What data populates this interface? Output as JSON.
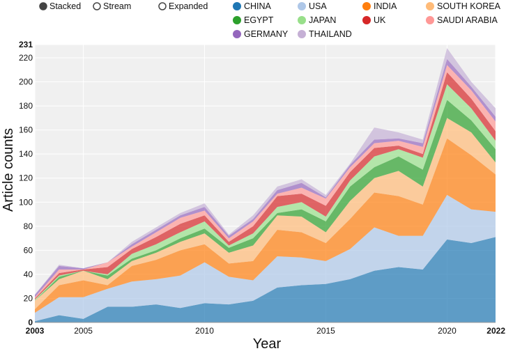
{
  "chart_data": {
    "type": "area",
    "stacked": true,
    "title": "",
    "xlabel": "Year",
    "ylabel": "Article counts",
    "xlim": [
      2003,
      2022
    ],
    "ylim": [
      0,
      231
    ],
    "x": [
      2003,
      2004,
      2005,
      2006,
      2007,
      2008,
      2009,
      2010,
      2011,
      2012,
      2013,
      2014,
      2015,
      2016,
      2017,
      2018,
      2019,
      2020,
      2021,
      2022
    ],
    "x_ticks": [
      "2003",
      "2005",
      "2010",
      "2015",
      "2020",
      "2022"
    ],
    "x_tick_values": [
      2003,
      2005,
      2010,
      2015,
      2020,
      2022
    ],
    "x_tick_bold": [
      true,
      false,
      false,
      false,
      false,
      true
    ],
    "y_ticks": [
      "0",
      "20",
      "40",
      "60",
      "80",
      "100",
      "120",
      "140",
      "160",
      "180",
      "200",
      "220",
      "231"
    ],
    "y_tick_values": [
      0,
      20,
      40,
      60,
      80,
      100,
      120,
      140,
      160,
      180,
      200,
      220,
      231
    ],
    "y_tick_bold": [
      true,
      false,
      false,
      false,
      false,
      false,
      false,
      false,
      false,
      false,
      false,
      false,
      true
    ],
    "grid": true,
    "series": [
      {
        "name": "CHINA",
        "color": "#1f77b4",
        "values": [
          1,
          6,
          3,
          13,
          13,
          15,
          12,
          16,
          15,
          18,
          29,
          31,
          32,
          36,
          43,
          46,
          44,
          69,
          66,
          71
        ]
      },
      {
        "name": "USA",
        "color": "#aec7e8",
        "values": [
          7,
          15,
          18,
          15,
          21,
          21,
          27,
          34,
          23,
          17,
          26,
          23,
          19,
          25,
          36,
          26,
          28,
          37,
          28,
          21
        ]
      },
      {
        "name": "INDIA",
        "color": "#ff7f0e",
        "values": [
          3,
          10,
          14,
          3,
          13,
          16,
          21,
          15,
          11,
          16,
          22,
          21,
          15,
          25,
          29,
          33,
          26,
          47,
          45,
          31
        ]
      },
      {
        "name": "SOUTH KOREA",
        "color": "#ffbb78",
        "values": [
          7,
          5,
          8,
          5,
          4,
          6,
          7,
          9,
          9,
          13,
          12,
          13,
          9,
          15,
          12,
          21,
          15,
          17,
          19,
          10
        ]
      },
      {
        "name": "EGYPT",
        "color": "#2ca02c",
        "values": [
          0,
          2,
          0,
          3,
          2,
          2,
          3,
          4,
          4,
          6,
          2,
          6,
          9,
          12,
          9,
          12,
          14,
          15,
          10,
          11
        ]
      },
      {
        "name": "JAPAN",
        "color": "#98df8a",
        "values": [
          1,
          1,
          0,
          1,
          4,
          5,
          5,
          6,
          2,
          4,
          5,
          6,
          4,
          5,
          9,
          6,
          10,
          13,
          10,
          7
        ]
      },
      {
        "name": "UK",
        "color": "#d62728",
        "values": [
          1,
          2,
          1,
          6,
          4,
          6,
          7,
          5,
          3,
          6,
          9,
          7,
          9,
          7,
          7,
          3,
          3,
          10,
          8,
          8
        ]
      },
      {
        "name": "SAUDI ARABIA",
        "color": "#ff9896",
        "values": [
          1,
          3,
          0,
          4,
          2,
          4,
          5,
          4,
          3,
          4,
          2,
          5,
          6,
          4,
          4,
          4,
          6,
          6,
          7,
          8
        ]
      },
      {
        "name": "GERMANY",
        "color": "#9467bd",
        "values": [
          2,
          3,
          1,
          0,
          2,
          2,
          2,
          3,
          2,
          2,
          3,
          4,
          1,
          2,
          3,
          2,
          3,
          5,
          3,
          4
        ]
      },
      {
        "name": "THAILAND",
        "color": "#c5b0d5",
        "values": [
          0,
          1,
          0,
          0,
          2,
          2,
          2,
          3,
          1,
          3,
          3,
          3,
          2,
          1,
          10,
          5,
          3,
          9,
          4,
          7
        ]
      }
    ],
    "legend_position": "top-right"
  },
  "controls": {
    "modes": [
      {
        "label": "Stacked",
        "selected": true
      },
      {
        "label": "Stream",
        "selected": false
      },
      {
        "label": "Expanded",
        "selected": false
      }
    ]
  }
}
